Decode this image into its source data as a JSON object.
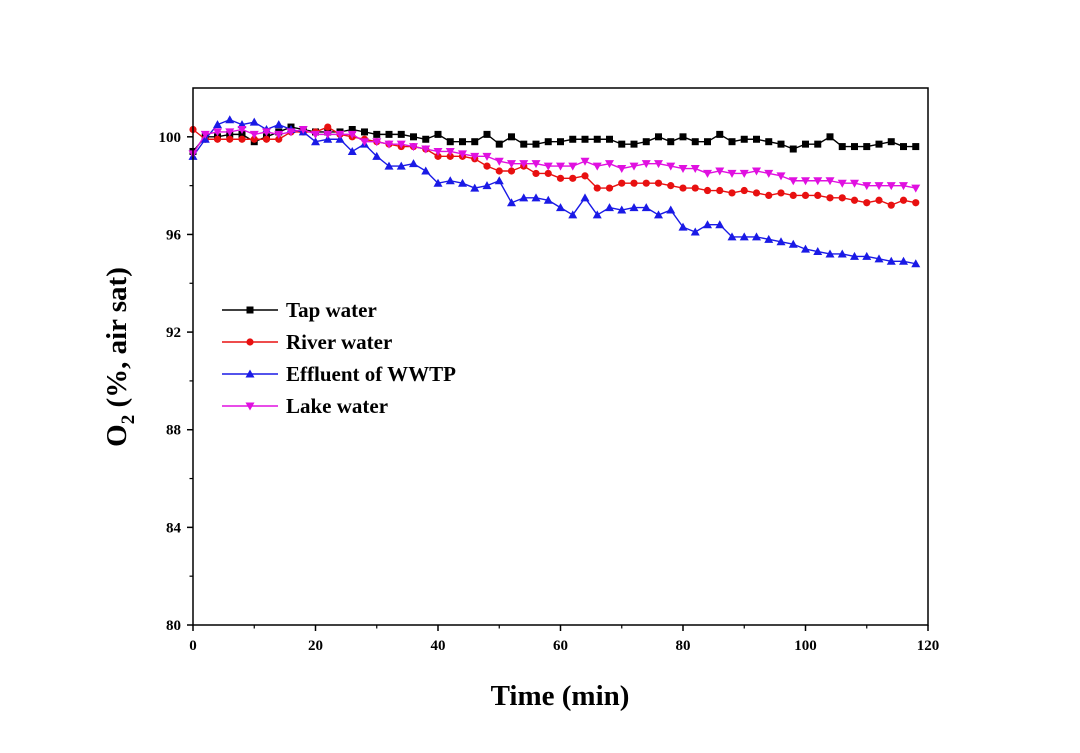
{
  "chart_data": {
    "type": "line",
    "title": "",
    "xlabel": "Time (min)",
    "ylabel_main": "O",
    "ylabel_sub": "2",
    "ylabel_rest": " (%, air sat)",
    "xlim": [
      0,
      120
    ],
    "ylim": [
      80,
      102
    ],
    "xticks": [
      0,
      20,
      40,
      60,
      80,
      100,
      120
    ],
    "yticks": [
      80,
      84,
      88,
      92,
      96,
      100
    ],
    "grid": false,
    "legend_position": "center-left",
    "x": [
      0,
      2,
      4,
      6,
      8,
      10,
      12,
      14,
      16,
      18,
      20,
      22,
      24,
      26,
      28,
      30,
      32,
      34,
      36,
      38,
      40,
      42,
      44,
      46,
      48,
      50,
      52,
      54,
      56,
      58,
      60,
      62,
      64,
      66,
      68,
      70,
      72,
      74,
      76,
      78,
      80,
      82,
      84,
      86,
      88,
      90,
      92,
      94,
      96,
      98,
      100,
      102,
      104,
      106,
      108,
      110,
      112,
      114,
      116,
      118
    ],
    "series": [
      {
        "name": "Tap water",
        "color": "#000000",
        "marker": "square",
        "values": [
          99.4,
          100.0,
          100.0,
          100.1,
          100.1,
          99.8,
          100.0,
          100.2,
          100.4,
          100.3,
          100.2,
          100.2,
          100.2,
          100.3,
          100.2,
          100.1,
          100.1,
          100.1,
          100.0,
          99.9,
          100.1,
          99.8,
          99.8,
          99.8,
          100.1,
          99.7,
          100.0,
          99.7,
          99.7,
          99.8,
          99.8,
          99.9,
          99.9,
          99.9,
          99.9,
          99.7,
          99.7,
          99.8,
          100.0,
          99.8,
          100.0,
          99.8,
          99.8,
          100.1,
          99.8,
          99.9,
          99.9,
          99.8,
          99.7,
          99.5,
          99.7,
          99.7,
          100.0,
          99.6,
          99.6,
          99.6,
          99.7,
          99.8,
          99.6,
          99.6
        ]
      },
      {
        "name": "River water",
        "color": "#e81010",
        "marker": "circle",
        "values": [
          100.3,
          99.9,
          99.9,
          99.9,
          99.9,
          99.9,
          99.9,
          99.9,
          100.2,
          100.2,
          100.2,
          100.4,
          100.1,
          100.0,
          99.9,
          99.8,
          99.7,
          99.6,
          99.6,
          99.5,
          99.2,
          99.2,
          99.2,
          99.1,
          98.8,
          98.6,
          98.6,
          98.8,
          98.5,
          98.5,
          98.3,
          98.3,
          98.4,
          97.9,
          97.9,
          98.1,
          98.1,
          98.1,
          98.1,
          98.0,
          97.9,
          97.9,
          97.8,
          97.8,
          97.7,
          97.8,
          97.7,
          97.6,
          97.7,
          97.6,
          97.6,
          97.6,
          97.5,
          97.5,
          97.4,
          97.3,
          97.4,
          97.2,
          97.4,
          97.3
        ]
      },
      {
        "name": "Effluent of WWTP",
        "color": "#1a1ae6",
        "marker": "triangle-up",
        "values": [
          99.2,
          99.9,
          100.5,
          100.7,
          100.5,
          100.6,
          100.3,
          100.5,
          100.3,
          100.2,
          99.8,
          99.9,
          99.9,
          99.4,
          99.7,
          99.2,
          98.8,
          98.8,
          98.9,
          98.6,
          98.1,
          98.2,
          98.1,
          97.9,
          98.0,
          98.2,
          97.3,
          97.5,
          97.5,
          97.4,
          97.1,
          96.8,
          97.5,
          96.8,
          97.1,
          97.0,
          97.1,
          97.1,
          96.8,
          97.0,
          96.3,
          96.1,
          96.4,
          96.4,
          95.9,
          95.9,
          95.9,
          95.8,
          95.7,
          95.6,
          95.4,
          95.3,
          95.2,
          95.2,
          95.1,
          95.1,
          95.0,
          94.9,
          94.9,
          94.8
        ]
      },
      {
        "name": "Lake water",
        "color": "#e010e0",
        "marker": "triangle-down",
        "values": [
          99.3,
          100.1,
          100.2,
          100.2,
          100.3,
          100.1,
          100.2,
          100.1,
          100.2,
          100.3,
          100.1,
          100.1,
          100.1,
          100.1,
          99.8,
          99.8,
          99.7,
          99.7,
          99.6,
          99.5,
          99.4,
          99.4,
          99.3,
          99.2,
          99.2,
          99.0,
          98.9,
          98.9,
          98.9,
          98.8,
          98.8,
          98.8,
          99.0,
          98.8,
          98.9,
          98.7,
          98.8,
          98.9,
          98.9,
          98.8,
          98.7,
          98.7,
          98.5,
          98.6,
          98.5,
          98.5,
          98.6,
          98.5,
          98.4,
          98.2,
          98.2,
          98.2,
          98.2,
          98.1,
          98.1,
          98.0,
          98.0,
          98.0,
          98.0,
          97.9
        ]
      }
    ]
  }
}
